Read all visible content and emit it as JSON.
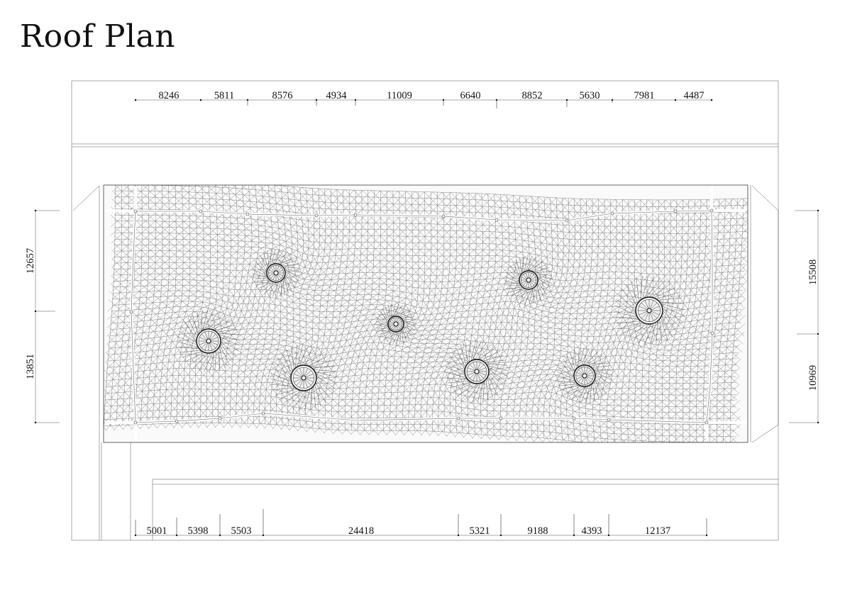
{
  "title": "Roof Plan",
  "dimensions": {
    "top": [
      "8246",
      "5811",
      "8576",
      "4934",
      "11009",
      "6640",
      "8852",
      "5630",
      "7981",
      "4487"
    ],
    "bottom": [
      "5001",
      "5398",
      "5503",
      "24418",
      "5321",
      "9188",
      "4393",
      "12137"
    ],
    "left": [
      "12657",
      "13851"
    ],
    "right": [
      "15508",
      "10969"
    ]
  },
  "drains": [
    {
      "name": "drain-1"
    },
    {
      "name": "drain-2"
    },
    {
      "name": "drain-3"
    },
    {
      "name": "drain-4"
    },
    {
      "name": "drain-5"
    },
    {
      "name": "drain-6"
    },
    {
      "name": "drain-7"
    },
    {
      "name": "drain-8"
    }
  ]
}
